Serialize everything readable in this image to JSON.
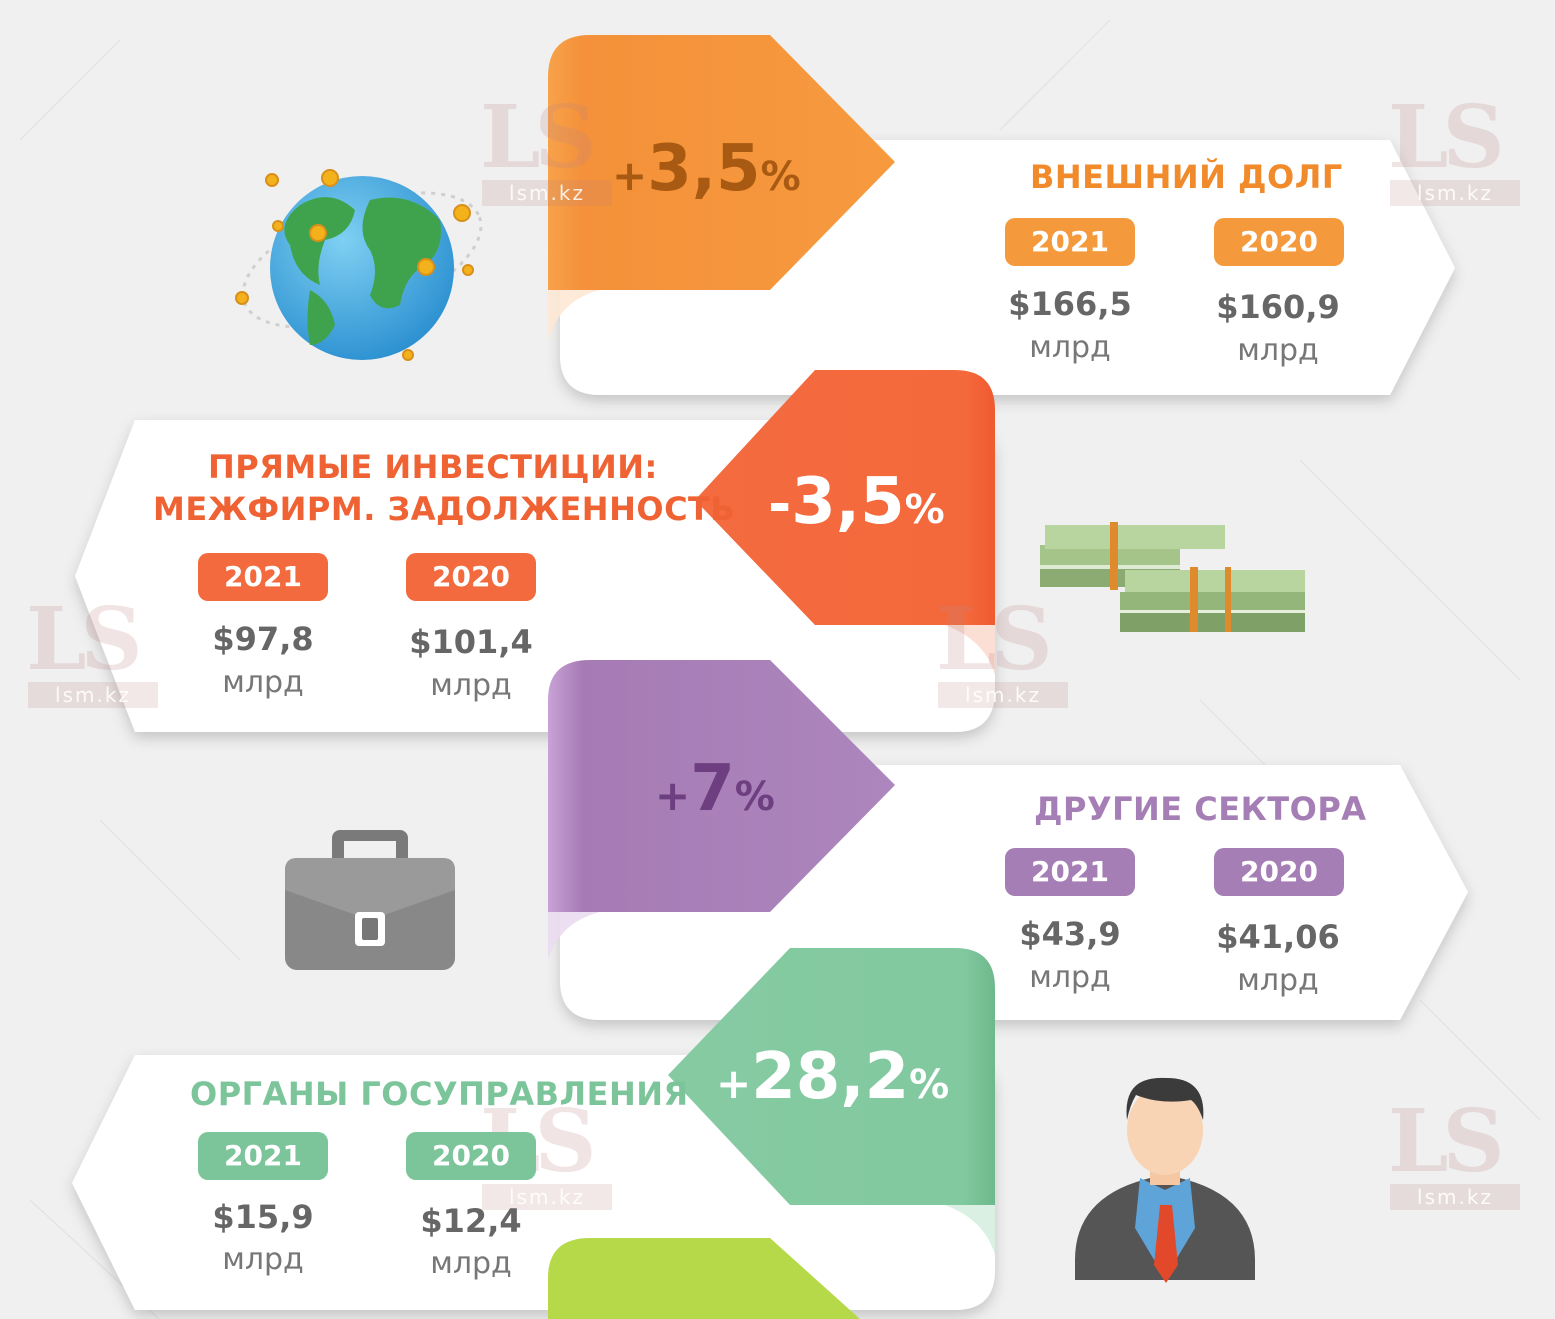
{
  "sections": [
    {
      "title": "ВНЕШНИЙ ДОЛГ",
      "change": {
        "sign": "+",
        "value": "3,5",
        "pct": "%"
      },
      "color": "#f59a3c",
      "year_a": "2021",
      "amount_a": "$166,5",
      "unit_a": "млрд",
      "year_b": "2020",
      "amount_b": "$160,9",
      "unit_b": "млрд",
      "icon": "globe-icon"
    },
    {
      "title_line1": "ПРЯМЫЕ ИНВЕСТИЦИИ:",
      "title_line2": "МЕЖФИРМ. ЗАДОЛЖЕННОСТЬ",
      "change": {
        "sign": "-",
        "value": "3,5",
        "pct": "%"
      },
      "color": "#f26a3d",
      "year_a": "2021",
      "amount_a": "$97,8",
      "unit_a": "млрд",
      "year_b": "2020",
      "amount_b": "$101,4",
      "unit_b": "млрд",
      "icon": "money-stacks-icon"
    },
    {
      "title": "ДРУГИЕ СЕКТОРА",
      "change": {
        "sign": "+",
        "value": "7",
        "pct": "%"
      },
      "color": "#a67eb6",
      "year_a": "2021",
      "amount_a": "$43,9",
      "unit_a": "млрд",
      "year_b": "2020",
      "amount_b": "$41,06",
      "unit_b": "млрд",
      "icon": "briefcase-icon"
    },
    {
      "title": "ОРГАНЫ ГОСУПРАВЛЕНИЯ",
      "change": {
        "sign": "+",
        "value": "28,2",
        "pct": "%"
      },
      "color": "#7cc49a",
      "year_a": "2021",
      "amount_a": "$15,9",
      "unit_a": "млрд",
      "year_b": "2020",
      "amount_b": "$12,4",
      "unit_b": "млрд",
      "icon": "businessman-icon"
    }
  ],
  "watermark": {
    "big": "LS",
    "small": "lsm.kz"
  }
}
